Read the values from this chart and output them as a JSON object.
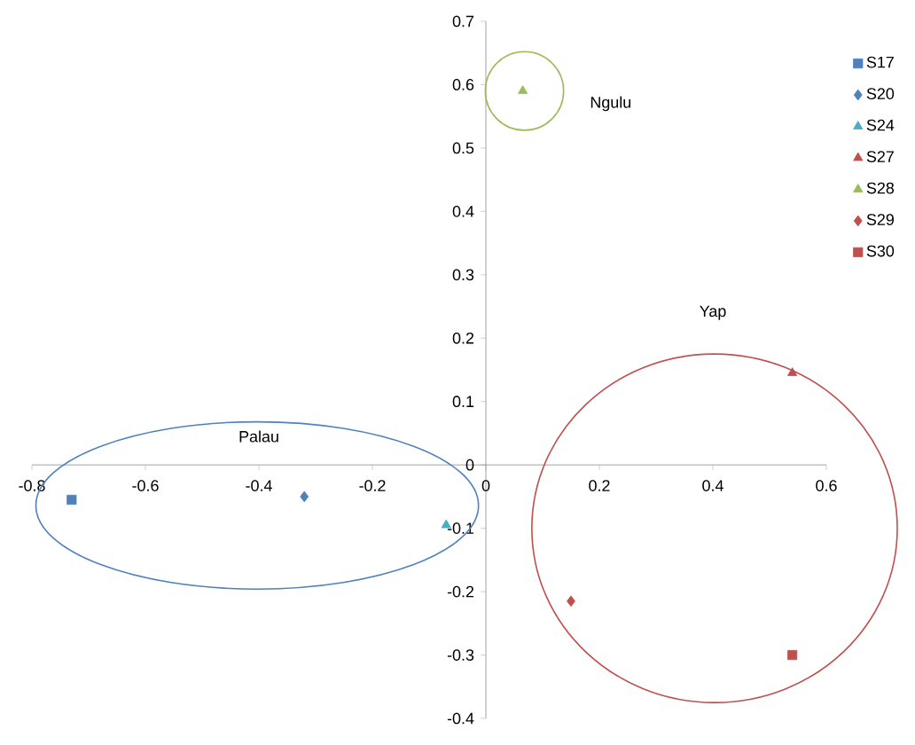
{
  "chart_data": {
    "type": "scatter",
    "xlim": [
      -0.8,
      0.6
    ],
    "ylim": [
      -0.4,
      0.7
    ],
    "xticks": [
      -0.8,
      -0.6,
      -0.4,
      -0.2,
      0,
      0.2,
      0.4,
      0.6
    ],
    "yticks": [
      -0.4,
      -0.3,
      -0.2,
      -0.1,
      0,
      0.1,
      0.2,
      0.3,
      0.4,
      0.5,
      0.6,
      0.7
    ],
    "grid": false,
    "legend": "right",
    "series": [
      {
        "name": "S17",
        "color": "#4f81bd",
        "marker": "square",
        "x": [
          -0.73
        ],
        "values": [
          -0.055
        ]
      },
      {
        "name": "S20",
        "color": "#4f81bd",
        "marker": "diamond",
        "x": [
          -0.32
        ],
        "values": [
          -0.05
        ]
      },
      {
        "name": "S24",
        "color": "#4bacc6",
        "marker": "triangle",
        "x": [
          -0.07
        ],
        "values": [
          -0.095
        ]
      },
      {
        "name": "S27",
        "color": "#c0504d",
        "marker": "triangle",
        "x": [
          0.54
        ],
        "values": [
          0.145
        ]
      },
      {
        "name": "S28",
        "color": "#9bbb59",
        "marker": "triangle",
        "x": [
          0.065
        ],
        "values": [
          0.59
        ]
      },
      {
        "name": "S29",
        "color": "#c0504d",
        "marker": "diamond",
        "x": [
          0.15
        ],
        "values": [
          -0.215
        ]
      },
      {
        "name": "S30",
        "color": "#c0504d",
        "marker": "square",
        "x": [
          0.54
        ],
        "values": [
          -0.3
        ]
      }
    ],
    "annotations": [
      "Palau",
      "Yap",
      "Ngulu"
    ]
  }
}
